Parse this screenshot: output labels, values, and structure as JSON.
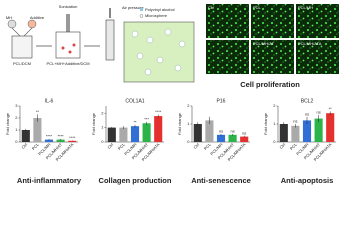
{
  "schematic": {
    "mh": "MH",
    "additive": "Additive",
    "pcl_dcm": "PCL/DCM",
    "mixture": "PCL+MH+Additive/DCM",
    "sonication": "Sonication",
    "air_pressure": "Air pressure",
    "legend": [
      "Polyvinyl alcohol",
      "Microsphere"
    ]
  },
  "proliferation": {
    "title": "Cell proliferation",
    "panels": [
      "Ctrl",
      "PCL",
      "PCL/MH",
      null,
      "PCL/MH/AT",
      "PCL/MH/ATA"
    ]
  },
  "chart_data": [
    {
      "type": "bar",
      "title": "IL-6",
      "caption": "Anti-inflammatory",
      "y_label": "Fold change",
      "categories": [
        "Ctrl",
        "PCL",
        "PCL/MH",
        "PCL/MH/AT",
        "PCL/MH/ATA"
      ],
      "values": [
        1.0,
        2.0,
        0.2,
        0.2,
        0.1
      ],
      "errors": [
        0.1,
        0.3,
        0.05,
        0.05,
        0.03
      ],
      "significance": [
        null,
        "**",
        "****",
        "****",
        "****"
      ],
      "colors": [
        "#333333",
        "#aaaaaa",
        "#2f6fd6",
        "#2cb34a",
        "#e53030"
      ],
      "ylim": [
        0,
        3
      ],
      "yticks": [
        0,
        1,
        2,
        3
      ]
    },
    {
      "type": "bar",
      "title": "COL1A1",
      "caption": "Collagen production",
      "y_label": "Fold change",
      "categories": [
        "Ctrl",
        "PCL",
        "PCL/MH",
        "PCL/MH/AT",
        "PCL/MH/ATA"
      ],
      "values": [
        1.0,
        1.0,
        1.1,
        1.3,
        1.8
      ],
      "errors": [
        0.05,
        0.1,
        0.1,
        0.1,
        0.1
      ],
      "significance": [
        null,
        null,
        "**",
        "***",
        "****"
      ],
      "colors": [
        "#333333",
        "#aaaaaa",
        "#2f6fd6",
        "#2cb34a",
        "#e53030"
      ],
      "ylim": [
        0,
        2.5
      ],
      "yticks": [
        0,
        1,
        2
      ]
    },
    {
      "type": "bar",
      "title": "P16",
      "caption": "Anti-senescence",
      "y_label": "Fold change",
      "categories": [
        "Ctrl",
        "PCL",
        "PCL/MH",
        "PCL/MH/AT",
        "PCL/MH/ATA"
      ],
      "values": [
        1.0,
        1.2,
        0.4,
        0.4,
        0.3
      ],
      "errors": [
        0.1,
        0.2,
        0.05,
        0.05,
        0.05
      ],
      "significance": [
        null,
        null,
        "ns",
        "ns",
        "ns"
      ],
      "colors": [
        "#333333",
        "#aaaaaa",
        "#2f6fd6",
        "#2cb34a",
        "#e53030"
      ],
      "ylim": [
        0,
        2
      ],
      "yticks": [
        0,
        1,
        2
      ]
    },
    {
      "type": "bar",
      "title": "BCL2",
      "caption": "Anti-apoptosis",
      "y_label": "Fold change",
      "categories": [
        "Ctrl",
        "PCL",
        "PCL/MH",
        "PCL/MH/AT",
        "PCL/MH/ATA"
      ],
      "values": [
        1.0,
        0.9,
        1.2,
        1.3,
        1.6
      ],
      "errors": [
        0.1,
        0.1,
        0.2,
        0.2,
        0.1
      ],
      "significance": [
        null,
        "ns",
        "ns",
        "ns",
        "**"
      ],
      "colors": [
        "#333333",
        "#aaaaaa",
        "#2f6fd6",
        "#2cb34a",
        "#e53030"
      ],
      "ylim": [
        0,
        2
      ],
      "yticks": [
        0,
        1,
        2
      ]
    }
  ]
}
